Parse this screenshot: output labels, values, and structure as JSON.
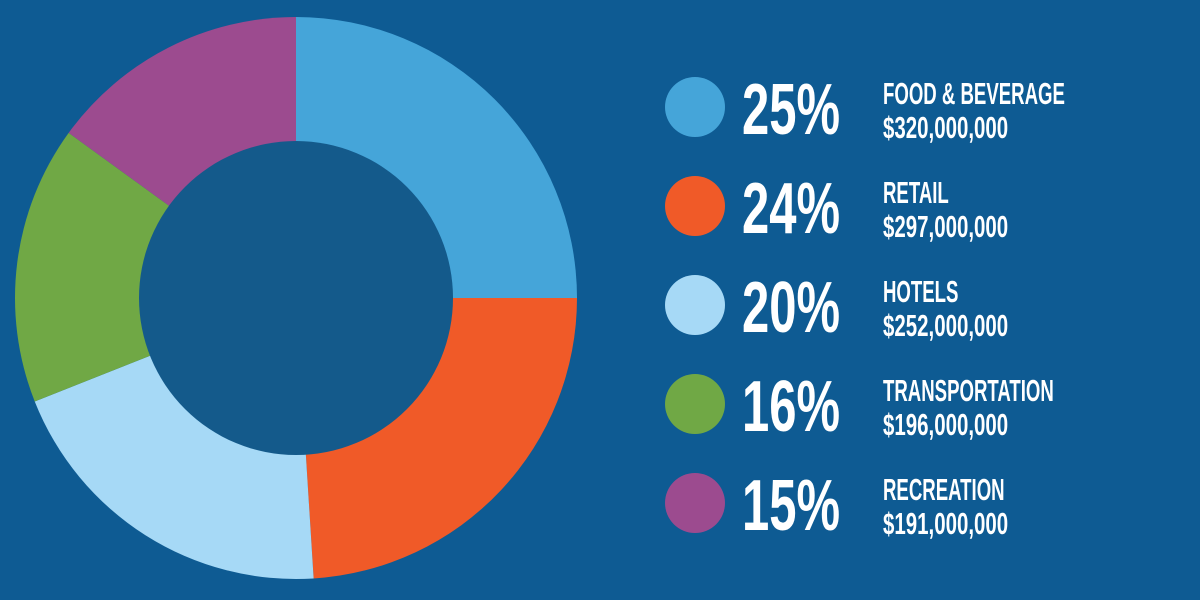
{
  "chart_data": {
    "type": "donut",
    "categories": [
      "FOOD & BEVERAGE",
      "RETAIL",
      "HOTELS",
      "TRANSPORTATION",
      "RECREATION"
    ],
    "values": [
      25,
      24,
      20,
      16,
      15
    ],
    "value_labels": [
      "25%",
      "24%",
      "20%",
      "16%",
      "15%"
    ],
    "amount_labels": [
      "$320,000,000",
      "$297,000,000",
      "$252,000,000",
      "$196,000,000",
      "$191,000,000"
    ],
    "colors": [
      "#45a5d9",
      "#f05a28",
      "#a6d9f6",
      "#70a845",
      "#9c4b8f"
    ]
  }
}
